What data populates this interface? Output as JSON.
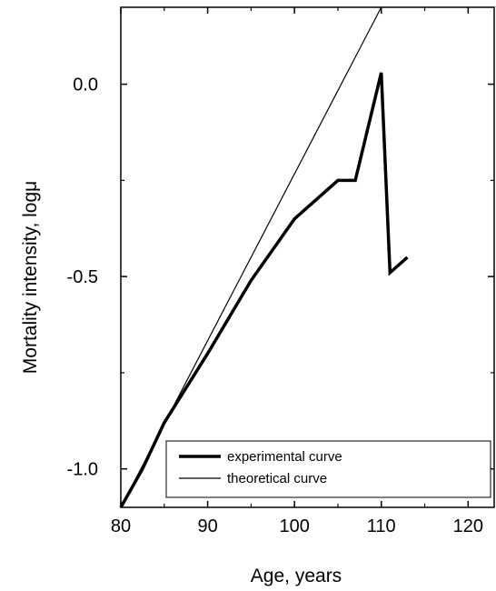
{
  "chart_data": {
    "type": "line",
    "xlabel": "Age, years",
    "ylabel": "Mortality intensity, logμ",
    "xlim": [
      80,
      123
    ],
    "ylim": [
      -1.1,
      0.2
    ],
    "x_ticks": [
      80,
      90,
      100,
      110,
      120
    ],
    "x_tick_labels": [
      "80",
      "90",
      "100",
      "110",
      "120"
    ],
    "y_ticks": [
      -1.0,
      -0.5,
      0.0
    ],
    "y_tick_labels": [
      "-1.0",
      "-0.5",
      "0.0"
    ],
    "grid": false,
    "legend_position": "bottom-right",
    "series": [
      {
        "name": "experimental curve",
        "style": "thick",
        "color": "#000000",
        "x": [
          80,
          82.5,
          85,
          90,
          95,
          100,
          105,
          107,
          110,
          111,
          113
        ],
        "y": [
          -1.1,
          -1.0,
          -0.88,
          -0.7,
          -0.51,
          -0.35,
          -0.25,
          -0.25,
          0.03,
          -0.49,
          -0.45
        ]
      },
      {
        "name": "theoretical curve",
        "style": "thin",
        "color": "#000000",
        "x": [
          80,
          110
        ],
        "y": [
          -1.1,
          0.2
        ]
      }
    ]
  }
}
